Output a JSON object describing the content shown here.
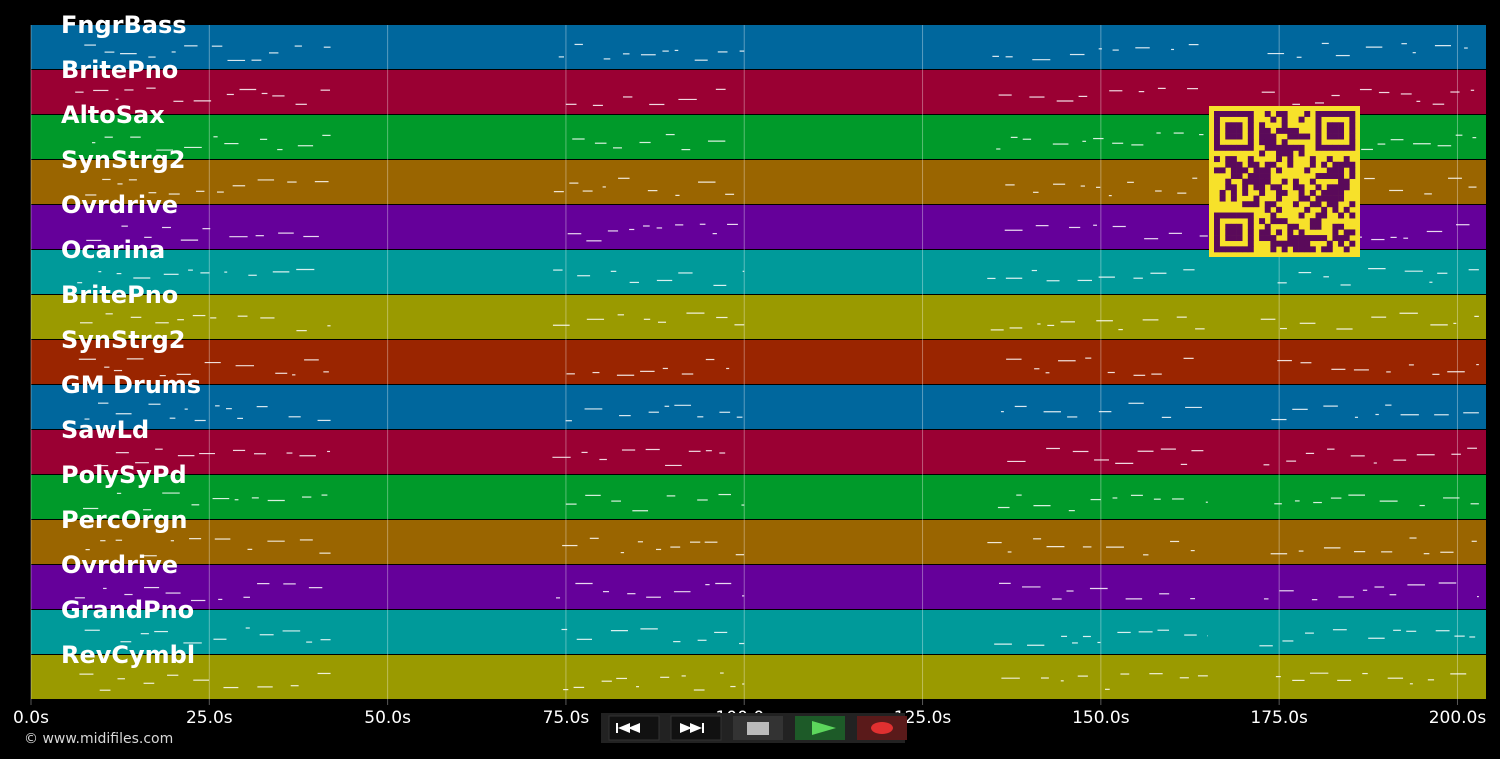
{
  "tracks": [
    {
      "name": "FngrBass",
      "color": "#00679d"
    },
    {
      "name": "BritePno",
      "color": "#9a0033"
    },
    {
      "name": "AltoSax",
      "color": "#009a2a"
    },
    {
      "name": "SynStrg2",
      "color": "#9a6500"
    },
    {
      "name": "Ovrdrive",
      "color": "#65009a"
    },
    {
      "name": "Ocarina",
      "color": "#009a9a"
    },
    {
      "name": "BritePno",
      "color": "#9a9a00"
    },
    {
      "name": "SynStrg2",
      "color": "#9a2500"
    },
    {
      "name": "GM Drums",
      "color": "#00679d"
    },
    {
      "name": "SawLd",
      "color": "#9a0033"
    },
    {
      "name": "PolySyPd",
      "color": "#009a2a"
    },
    {
      "name": "PercOrgn",
      "color": "#9a6500"
    },
    {
      "name": "Ovrdrive",
      "color": "#65009a"
    },
    {
      "name": "GrandPno",
      "color": "#009a9a"
    },
    {
      "name": "RevCymbl",
      "color": "#9a9a00"
    }
  ],
  "time_axis": {
    "range_seconds": [
      0,
      204
    ],
    "ticks": [
      {
        "value": 0,
        "label": "0.0s"
      },
      {
        "value": 25,
        "label": "25.0s"
      },
      {
        "value": 50,
        "label": "50.0s"
      },
      {
        "value": 75,
        "label": "75.0s"
      },
      {
        "value": 100,
        "label": "100.0s"
      },
      {
        "value": 125,
        "label": "125.0s"
      },
      {
        "value": 150,
        "label": "150.0s"
      },
      {
        "value": 175,
        "label": "175.0s"
      },
      {
        "value": 200,
        "label": "200.0s"
      }
    ]
  },
  "copyright": "© www.midifiles.com",
  "transport": {
    "buttons": [
      "rewind",
      "fast-forward",
      "stop",
      "play",
      "record"
    ],
    "colors": {
      "play": "#5cd65c",
      "record": "#e03030",
      "stop": "#bbbbbb"
    }
  },
  "qr_code": {
    "foreground": "#5a0a5a",
    "background": "#f7e12a"
  }
}
